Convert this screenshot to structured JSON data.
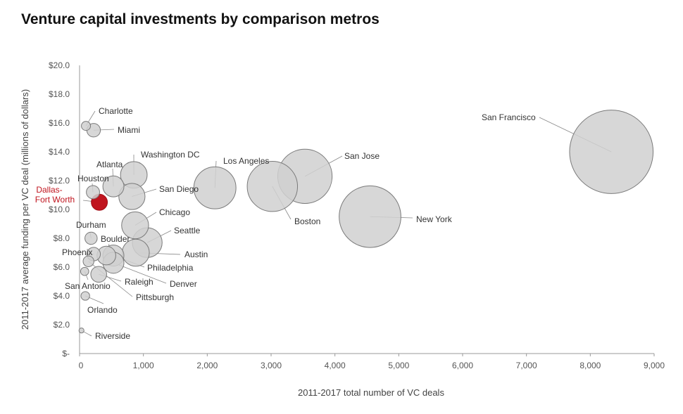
{
  "chart_data": {
    "type": "scatter",
    "title": "Venture capital investments by comparison metros",
    "xlabel": "2011-2017 total number of VC deals",
    "ylabel": "2011-2017 average funding per VC deal (millions of dollars)",
    "xlim": [
      0,
      9000
    ],
    "ylim": [
      0,
      20
    ],
    "x_ticks": [
      "0",
      "1,000",
      "2,000",
      "3,000",
      "4,000",
      "5,000",
      "6,000",
      "7,000",
      "8,000",
      "9,000"
    ],
    "y_ticks": [
      "$-",
      "$2.0",
      "$4.0",
      "$6.0",
      "$8.0",
      "$10.0",
      "$12.0",
      "$14.0",
      "$16.0",
      "$18.0",
      "$20.0"
    ],
    "bubble_size": "number of VC deals",
    "highlight_color": "#c0141e",
    "bubble_color": "#d0d0d0",
    "points": [
      {
        "name": "San Francisco",
        "x": 8330,
        "y": 14.0
      },
      {
        "name": "San Jose",
        "x": 3530,
        "y": 12.3
      },
      {
        "name": "Boston",
        "x": 3020,
        "y": 11.6
      },
      {
        "name": "New York",
        "x": 4550,
        "y": 9.5
      },
      {
        "name": "Los Angeles",
        "x": 2120,
        "y": 11.5
      },
      {
        "name": "Washington DC",
        "x": 850,
        "y": 12.4
      },
      {
        "name": "San Diego",
        "x": 820,
        "y": 10.9
      },
      {
        "name": "Atlanta",
        "x": 530,
        "y": 11.6
      },
      {
        "name": "Chicago",
        "x": 870,
        "y": 8.9
      },
      {
        "name": "Seattle",
        "x": 1060,
        "y": 7.7
      },
      {
        "name": "Austin",
        "x": 880,
        "y": 7.0
      },
      {
        "name": "Philadelphia",
        "x": 530,
        "y": 6.8
      },
      {
        "name": "Denver",
        "x": 530,
        "y": 6.3
      },
      {
        "name": "Boulder",
        "x": 420,
        "y": 6.8
      },
      {
        "name": "Charlotte",
        "x": 100,
        "y": 15.8
      },
      {
        "name": "Miami",
        "x": 220,
        "y": 15.5
      },
      {
        "name": "Houston",
        "x": 210,
        "y": 11.2
      },
      {
        "name": "Dallas-Fort Worth",
        "x": 310,
        "y": 10.5,
        "highlight": true
      },
      {
        "name": "Durham",
        "x": 180,
        "y": 8.0
      },
      {
        "name": "Phoenix",
        "x": 220,
        "y": 6.9
      },
      {
        "name": "Raleigh",
        "x": 300,
        "y": 5.5
      },
      {
        "name": "San Antonio",
        "x": 80,
        "y": 5.7
      },
      {
        "name": "Pittsburgh",
        "x": 140,
        "y": 6.4
      },
      {
        "name": "Orlando",
        "x": 90,
        "y": 4.0
      },
      {
        "name": "Riverside",
        "x": 30,
        "y": 1.6
      }
    ]
  }
}
